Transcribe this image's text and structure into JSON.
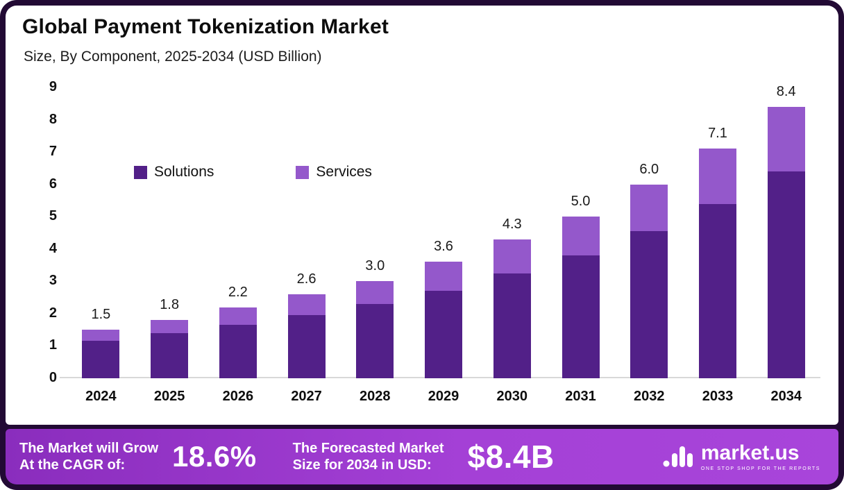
{
  "title": "Global Payment Tokenization Market",
  "subtitle": "Size, By Component, 2025-2034 (USD Billion)",
  "legend": {
    "solutions": "Solutions",
    "services": "Services"
  },
  "colors": {
    "solutions": "#522088",
    "services": "#9458cb",
    "banner_from": "#8a2dbd",
    "banner_to": "#a845da",
    "frame": "#220a34"
  },
  "chart_data": {
    "type": "stacked-bar",
    "title": "Global Payment Tokenization Market",
    "subtitle": "Size, By Component, 2025-2034 (USD Billion)",
    "categories": [
      "2024",
      "2025",
      "2026",
      "2027",
      "2028",
      "2029",
      "2030",
      "2031",
      "2032",
      "2033",
      "2034"
    ],
    "series": [
      {
        "name": "Solutions",
        "values": [
          1.15,
          1.4,
          1.65,
          1.95,
          2.3,
          2.7,
          3.25,
          3.8,
          4.55,
          5.4,
          6.4
        ]
      },
      {
        "name": "Services",
        "values": [
          0.35,
          0.4,
          0.55,
          0.65,
          0.7,
          0.9,
          1.05,
          1.2,
          1.45,
          1.7,
          2.0
        ]
      }
    ],
    "totals": [
      "1.5",
      "1.8",
      "2.2",
      "2.6",
      "3.0",
      "3.6",
      "4.3",
      "5.0",
      "6.0",
      "7.1",
      "8.4"
    ],
    "y_ticks": [
      "0",
      "1",
      "2",
      "3",
      "4",
      "5",
      "6",
      "7",
      "8",
      "9"
    ],
    "ylim": [
      0,
      9
    ],
    "grid": false,
    "legend_position": "upper-left-inside"
  },
  "banner": {
    "cagr_label_line1": "The Market will Grow",
    "cagr_label_line2": "At the CAGR of:",
    "cagr_value": "18.6%",
    "forecast_label_line1": "The Forecasted Market",
    "forecast_label_line2": "Size for 2034 in USD:",
    "forecast_value": "$8.4B",
    "logo_text": "market.us",
    "logo_tagline": "ONE STOP SHOP FOR THE REPORTS"
  }
}
